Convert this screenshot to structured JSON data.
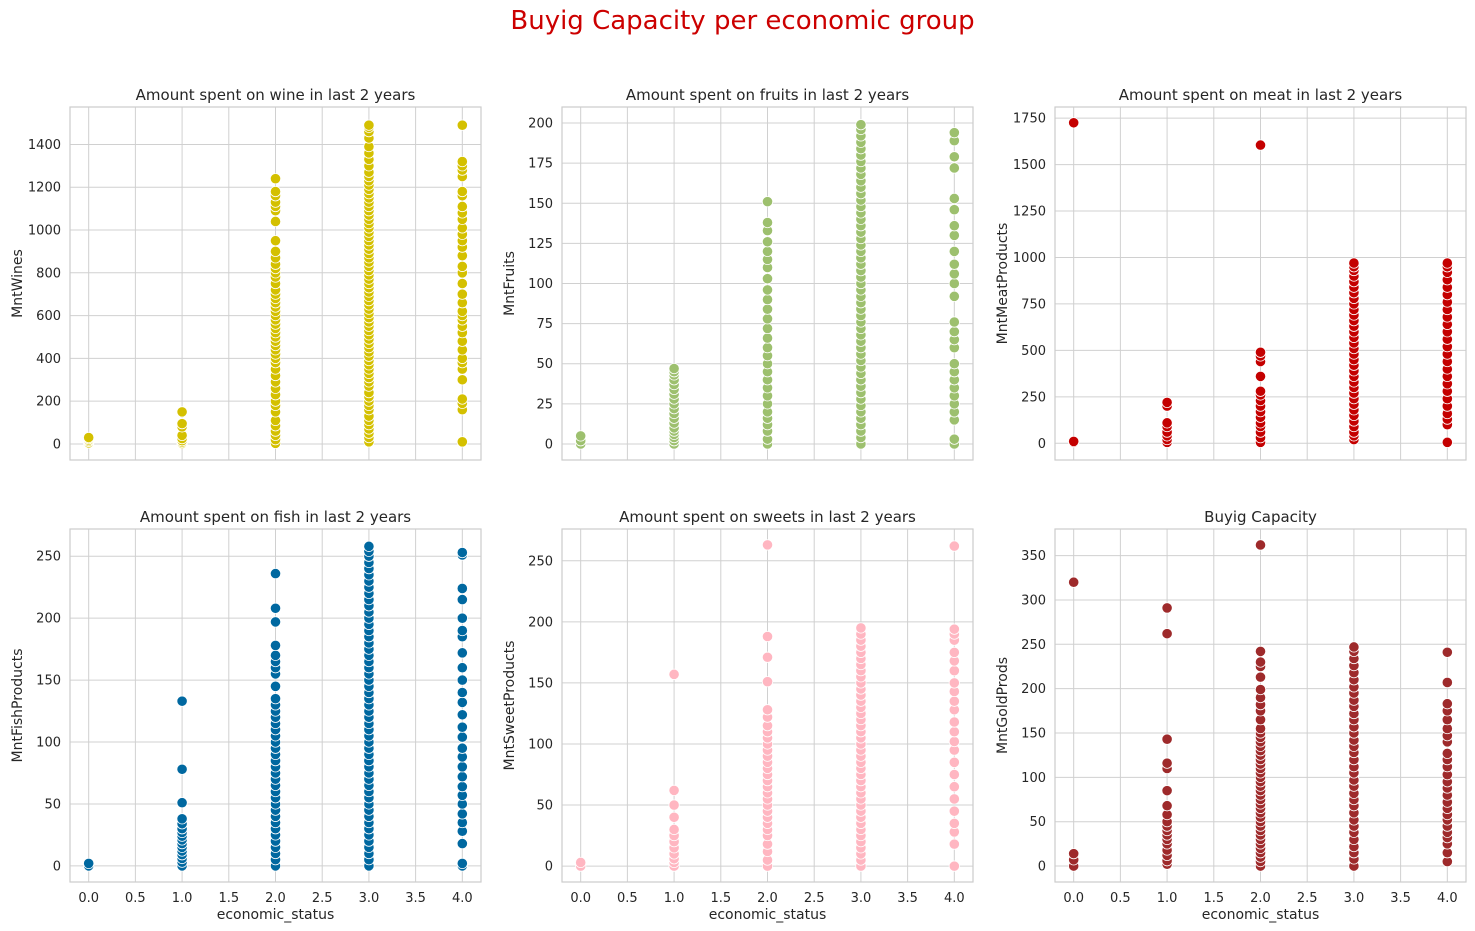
{
  "suptitle": "Buyig Capacity per economic group",
  "suptitle_color": "#cc0000",
  "chart_data": [
    {
      "type": "scatter",
      "title": "Amount spent on wine in last 2 years",
      "xlabel": "",
      "ylabel": "MntWines",
      "color": "#d4c000",
      "xlim": [
        -0.2,
        4.2
      ],
      "ylim": [
        -75,
        1575
      ],
      "xticks": [],
      "yticks": [
        "0",
        "200",
        "400",
        "600",
        "800",
        "1000",
        "1200",
        "1400"
      ],
      "ytick_values": [
        0,
        200,
        400,
        600,
        800,
        1000,
        1200,
        1400
      ],
      "points": [
        {
          "x": 0,
          "y": [
            5,
            12,
            18,
            25,
            30
          ]
        },
        {
          "x": 1,
          "y": [
            2,
            8,
            15,
            25,
            40,
            80,
            95,
            150
          ]
        },
        {
          "x": 2,
          "y": [
            3,
            20,
            40,
            60,
            85,
            110,
            150,
            180,
            200,
            230,
            260,
            290,
            320,
            350,
            380,
            400,
            420,
            440,
            460,
            480,
            500,
            520,
            540,
            560,
            580,
            600,
            620,
            640,
            660,
            680,
            700,
            720,
            750,
            780,
            800,
            820,
            840,
            870,
            900,
            950,
            1040,
            1090,
            1110,
            1130,
            1160,
            1180,
            1240
          ]
        },
        {
          "x": 3,
          "y": [
            10,
            30,
            50,
            70,
            90,
            110,
            130,
            160,
            180,
            200,
            220,
            240,
            270,
            290,
            310,
            330,
            350,
            370,
            390,
            410,
            430,
            450,
            470,
            490,
            510,
            530,
            550,
            570,
            590,
            610,
            630,
            650,
            670,
            690,
            710,
            730,
            750,
            770,
            790,
            810,
            830,
            850,
            870,
            890,
            910,
            930,
            950,
            970,
            990,
            1010,
            1030,
            1050,
            1070,
            1090,
            1110,
            1130,
            1150,
            1170,
            1190,
            1210,
            1230,
            1250,
            1270,
            1300,
            1330,
            1360,
            1390,
            1430,
            1460,
            1480,
            1490
          ]
        },
        {
          "x": 4,
          "y": [
            10,
            160,
            190,
            210,
            300,
            350,
            380,
            400,
            440,
            480,
            520,
            550,
            580,
            600,
            620,
            660,
            700,
            750,
            800,
            830,
            880,
            920,
            950,
            980,
            1010,
            1050,
            1080,
            1110,
            1160,
            1180,
            1250,
            1280,
            1300,
            1320,
            1490
          ]
        }
      ]
    },
    {
      "type": "scatter",
      "title": "Amount spent on fruits in last 2 years",
      "xlabel": "",
      "ylabel": "MntFruits",
      "color": "#9dc06e",
      "xlim": [
        -0.2,
        4.2
      ],
      "ylim": [
        -10,
        210
      ],
      "xticks": [],
      "yticks": [
        "0",
        "25",
        "50",
        "75",
        "100",
        "125",
        "150",
        "175",
        "200"
      ],
      "ytick_values": [
        0,
        25,
        50,
        75,
        100,
        125,
        150,
        175,
        200
      ],
      "points": [
        {
          "x": 0,
          "y": [
            0,
            2,
            5
          ]
        },
        {
          "x": 1,
          "y": [
            0,
            2,
            4,
            6,
            8,
            10,
            13,
            16,
            19,
            22,
            25,
            28,
            31,
            34,
            37,
            40,
            43,
            45,
            47
          ]
        },
        {
          "x": 2,
          "y": [
            0,
            3,
            8,
            12,
            16,
            20,
            25,
            30,
            35,
            40,
            45,
            50,
            55,
            60,
            66,
            72,
            78,
            84,
            90,
            96,
            103,
            110,
            115,
            120,
            126,
            133,
            138,
            151
          ]
        },
        {
          "x": 3,
          "y": [
            0,
            4,
            8,
            12,
            16,
            20,
            24,
            28,
            32,
            36,
            40,
            44,
            48,
            52,
            56,
            60,
            64,
            68,
            72,
            76,
            80,
            84,
            88,
            92,
            96,
            100,
            104,
            108,
            112,
            116,
            120,
            124,
            128,
            132,
            136,
            140,
            144,
            148,
            152,
            156,
            160,
            164,
            168,
            172,
            176,
            180,
            184,
            188,
            192,
            196,
            199
          ]
        },
        {
          "x": 4,
          "y": [
            0,
            3,
            15,
            20,
            25,
            30,
            35,
            40,
            45,
            50,
            60,
            65,
            70,
            76,
            92,
            100,
            106,
            112,
            120,
            130,
            136,
            146,
            153,
            172,
            179,
            189,
            194
          ]
        }
      ]
    },
    {
      "type": "scatter",
      "title": "Amount spent on meat in last 2 years",
      "xlabel": "",
      "ylabel": "MntMeatProducts",
      "color": "#c40000",
      "xlim": [
        -0.2,
        4.2
      ],
      "ylim": [
        -90,
        1810
      ],
      "xticks": [],
      "yticks": [
        "0",
        "250",
        "500",
        "750",
        "1000",
        "1250",
        "1500",
        "1750"
      ],
      "ytick_values": [
        0,
        250,
        500,
        750,
        1000,
        1250,
        1500,
        1750
      ],
      "points": [
        {
          "x": 0,
          "y": [
            5,
            10,
            1725
          ]
        },
        {
          "x": 1,
          "y": [
            5,
            20,
            40,
            60,
            90,
            110,
            200,
            220
          ]
        },
        {
          "x": 2,
          "y": [
            5,
            30,
            60,
            90,
            110,
            140,
            170,
            200,
            230,
            260,
            280,
            360,
            440,
            470,
            490,
            1605
          ]
        },
        {
          "x": 3,
          "y": [
            20,
            40,
            60,
            90,
            120,
            150,
            180,
            210,
            240,
            270,
            300,
            330,
            360,
            390,
            420,
            450,
            480,
            510,
            540,
            570,
            600,
            630,
            660,
            690,
            720,
            750,
            780,
            810,
            840,
            870,
            900,
            930,
            950,
            970
          ]
        },
        {
          "x": 4,
          "y": [
            5,
            100,
            130,
            160,
            200,
            240,
            280,
            320,
            360,
            400,
            440,
            480,
            520,
            560,
            600,
            640,
            680,
            720,
            760,
            800,
            840,
            880,
            920,
            950,
            970
          ]
        }
      ]
    },
    {
      "type": "scatter",
      "title": "Amount spent on fish in last 2 years",
      "xlabel": "economic_status",
      "ylabel": "MntFishProducts",
      "color": "#0068a0",
      "xlim": [
        -0.2,
        4.2
      ],
      "ylim": [
        -13,
        272
      ],
      "xticks": [
        "0.0",
        "0.5",
        "1.0",
        "1.5",
        "2.0",
        "2.5",
        "3.0",
        "3.5",
        "4.0"
      ],
      "xtick_values": [
        0,
        0.5,
        1,
        1.5,
        2,
        2.5,
        3,
        3.5,
        4
      ],
      "yticks": [
        "0",
        "50",
        "100",
        "150",
        "200",
        "250"
      ],
      "ytick_values": [
        0,
        50,
        100,
        150,
        200,
        250
      ],
      "points": [
        {
          "x": 0,
          "y": [
            0,
            2
          ]
        },
        {
          "x": 1,
          "y": [
            0,
            3,
            6,
            9,
            12,
            15,
            18,
            21,
            24,
            27,
            30,
            34,
            38,
            51,
            78,
            133
          ]
        },
        {
          "x": 2,
          "y": [
            0,
            5,
            10,
            15,
            20,
            25,
            30,
            35,
            40,
            45,
            50,
            55,
            60,
            65,
            70,
            75,
            80,
            85,
            90,
            95,
            100,
            105,
            110,
            115,
            120,
            125,
            130,
            135,
            145,
            155,
            160,
            165,
            170,
            178,
            197,
            208,
            236
          ]
        },
        {
          "x": 3,
          "y": [
            0,
            5,
            10,
            15,
            20,
            25,
            30,
            35,
            40,
            45,
            50,
            55,
            60,
            65,
            70,
            75,
            80,
            85,
            90,
            95,
            100,
            105,
            110,
            115,
            120,
            125,
            130,
            135,
            140,
            145,
            150,
            155,
            160,
            165,
            170,
            175,
            180,
            185,
            190,
            195,
            200,
            205,
            210,
            215,
            220,
            225,
            230,
            235,
            240,
            245,
            250,
            254,
            258
          ]
        },
        {
          "x": 4,
          "y": [
            0,
            2,
            18,
            28,
            35,
            42,
            50,
            57,
            64,
            72,
            80,
            88,
            95,
            104,
            112,
            122,
            132,
            140,
            150,
            160,
            172,
            185,
            190,
            200,
            215,
            224,
            251,
            253
          ]
        }
      ]
    },
    {
      "type": "scatter",
      "title": "Amount spent on sweets in last 2 years",
      "xlabel": "economic_status",
      "ylabel": "MntSweetProducts",
      "color": "#ffb6c1",
      "xlim": [
        -0.2,
        4.2
      ],
      "ylim": [
        -13,
        276
      ],
      "xticks": [
        "0.0",
        "0.5",
        "1.0",
        "1.5",
        "2.0",
        "2.5",
        "3.0",
        "3.5",
        "4.0"
      ],
      "xtick_values": [
        0,
        0.5,
        1,
        1.5,
        2,
        2.5,
        3,
        3.5,
        4
      ],
      "yticks": [
        "0",
        "50",
        "100",
        "150",
        "200",
        "250"
      ],
      "ytick_values": [
        0,
        50,
        100,
        150,
        200,
        250
      ],
      "points": [
        {
          "x": 0,
          "y": [
            0,
            3
          ]
        },
        {
          "x": 1,
          "y": [
            0,
            3,
            6,
            10,
            15,
            20,
            25,
            30,
            40,
            50,
            62,
            157
          ]
        },
        {
          "x": 2,
          "y": [
            0,
            5,
            12,
            18,
            25,
            30,
            35,
            40,
            45,
            50,
            55,
            60,
            65,
            70,
            75,
            80,
            85,
            90,
            95,
            100,
            105,
            110,
            115,
            122,
            128,
            151,
            171,
            188,
            263
          ]
        },
        {
          "x": 3,
          "y": [
            0,
            5,
            10,
            15,
            20,
            25,
            30,
            35,
            40,
            45,
            50,
            55,
            60,
            65,
            70,
            75,
            80,
            85,
            90,
            95,
            100,
            105,
            110,
            115,
            120,
            125,
            130,
            135,
            140,
            145,
            150,
            155,
            160,
            165,
            170,
            175,
            180,
            185,
            190,
            195
          ]
        },
        {
          "x": 4,
          "y": [
            0,
            18,
            28,
            35,
            45,
            55,
            65,
            75,
            85,
            95,
            102,
            110,
            118,
            128,
            135,
            143,
            150,
            160,
            168,
            175,
            185,
            190,
            194,
            262
          ]
        }
      ]
    },
    {
      "type": "scatter",
      "title": "Buyig Capacity",
      "xlabel": "economic_status",
      "ylabel": "MntGoldProds",
      "color": "#9e2a2b",
      "xlim": [
        -0.2,
        4.2
      ],
      "ylim": [
        -18,
        380
      ],
      "xticks": [
        "0.0",
        "0.5",
        "1.0",
        "1.5",
        "2.0",
        "2.5",
        "3.0",
        "3.5",
        "4.0"
      ],
      "xtick_values": [
        0,
        0.5,
        1,
        1.5,
        2,
        2.5,
        3,
        3.5,
        4
      ],
      "yticks": [
        "0",
        "50",
        "100",
        "150",
        "200",
        "250",
        "300",
        "350"
      ],
      "ytick_values": [
        0,
        50,
        100,
        150,
        200,
        250,
        300,
        350
      ],
      "points": [
        {
          "x": 0,
          "y": [
            0,
            7,
            14,
            320
          ]
        },
        {
          "x": 1,
          "y": [
            2,
            6,
            12,
            18,
            25,
            30,
            35,
            40,
            45,
            50,
            58,
            68,
            85,
            110,
            116,
            143,
            262,
            291
          ]
        },
        {
          "x": 2,
          "y": [
            0,
            5,
            10,
            15,
            20,
            25,
            30,
            35,
            40,
            45,
            50,
            55,
            60,
            65,
            70,
            75,
            80,
            85,
            90,
            95,
            100,
            105,
            110,
            115,
            120,
            125,
            130,
            135,
            140,
            145,
            150,
            155,
            165,
            175,
            182,
            190,
            199,
            213,
            225,
            230,
            242,
            362
          ]
        },
        {
          "x": 3,
          "y": [
            0,
            8,
            15,
            22,
            30,
            38,
            45,
            52,
            60,
            68,
            75,
            82,
            90,
            97,
            105,
            112,
            120,
            128,
            135,
            142,
            150,
            157,
            165,
            172,
            180,
            187,
            195,
            202,
            210,
            218,
            226,
            234,
            242,
            247
          ]
        },
        {
          "x": 4,
          "y": [
            5,
            15,
            25,
            32,
            38,
            45,
            52,
            58,
            65,
            72,
            80,
            88,
            95,
            103,
            112,
            120,
            127,
            140,
            147,
            155,
            165,
            175,
            183,
            207,
            241
          ]
        }
      ]
    }
  ]
}
